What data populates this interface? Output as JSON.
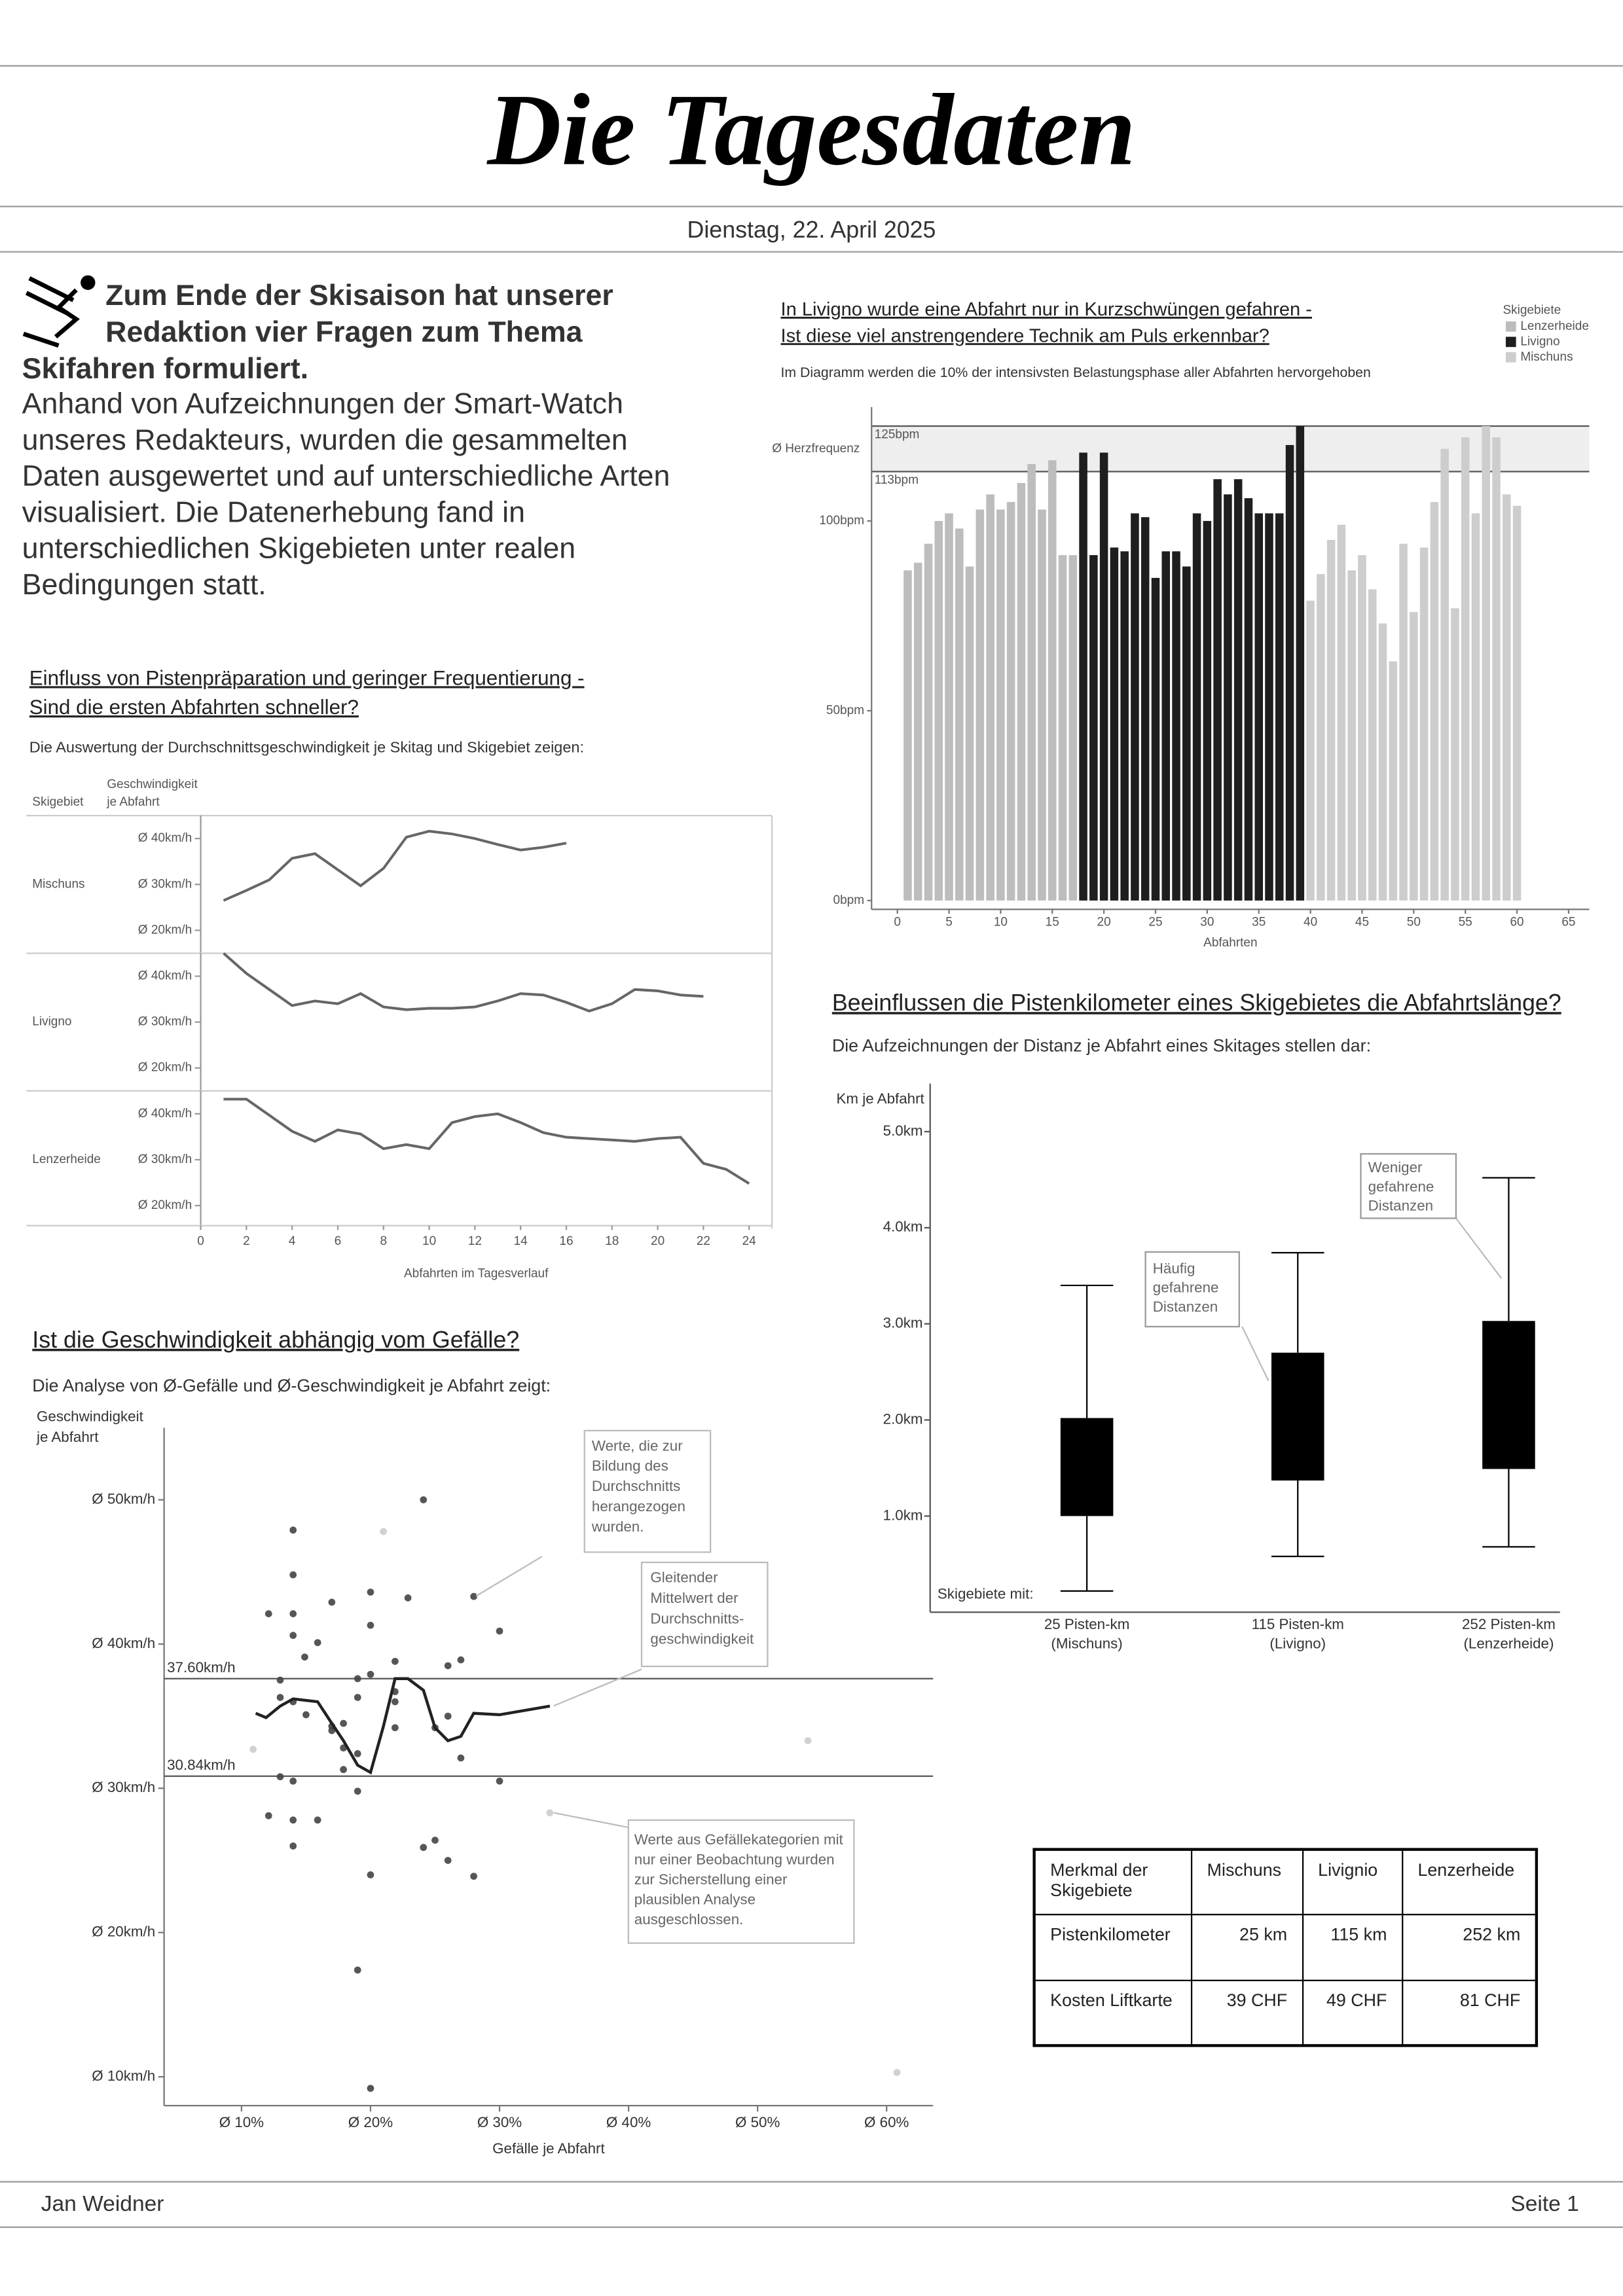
{
  "header": {
    "title": "Die Tagesdaten",
    "date": "Dienstag, 22. April 2025"
  },
  "intro": {
    "lead": [
      "Zum Ende der Skisaison hat unserer",
      "Redaktion vier Fragen zum Thema",
      "Skifahren formuliert."
    ],
    "body": [
      "Anhand von Aufzeichnungen der Smart-Watch",
      "unseres Redakteurs, wurden die gesammelten",
      "Daten ausgewertet und auf unterschiedliche Arten",
      "visualisiert. Die Datenerhebung fand in",
      "unterschiedlichen Skigebieten unter realen",
      "Bedingungen statt."
    ]
  },
  "chart_data": [
    {
      "type": "bar",
      "title": [
        "In Livigno wurde eine Abfahrt nur in Kurzschwüngen gefahren -",
        "Ist diese viel anstrengendere Technik am Puls erkennbar?"
      ],
      "subtitle": "Im Diagramm werden die 10% der intensivsten Belastungsphase aller Abfahrten hervorgehoben",
      "xlabel": "Abfahrten",
      "legend_title": "Skigebiete",
      "series": [
        {
          "name": "Lenzerheide",
          "color": "#bdbdbd",
          "x": [
            1,
            2,
            3,
            4,
            5,
            6,
            7,
            8,
            9,
            10,
            11,
            12,
            13,
            14,
            15,
            16,
            17
          ],
          "values": [
            87,
            89,
            94,
            100,
            102,
            98,
            88,
            103,
            107,
            103,
            105,
            110,
            115,
            103,
            116,
            91,
            91
          ]
        },
        {
          "name": "Livigno",
          "color": "#1e1e1e",
          "x": [
            18,
            19,
            20,
            21,
            22,
            23,
            24,
            25,
            26,
            27,
            28,
            29,
            30,
            31,
            32,
            33,
            34,
            35,
            36,
            37,
            38,
            39
          ],
          "values": [
            118,
            91,
            118,
            93,
            92,
            102,
            101,
            85,
            92,
            92,
            88,
            102,
            100,
            111,
            107,
            111,
            106,
            102,
            102,
            102,
            120,
            125
          ]
        },
        {
          "name": "Mischuns",
          "color": "#cdcdcd",
          "x": [
            40,
            41,
            42,
            43,
            44,
            45,
            46,
            47,
            48,
            49,
            50,
            51,
            52,
            53,
            54,
            55,
            56,
            57,
            58,
            59,
            60
          ],
          "values": [
            79,
            86,
            95,
            99,
            87,
            91,
            82,
            73,
            63,
            94,
            76,
            93,
            105,
            119,
            77,
            122,
            102,
            125,
            122,
            107,
            104
          ]
        }
      ],
      "xlim": [
        -2.5,
        67
      ],
      "xticks": [
        0,
        5,
        10,
        15,
        20,
        25,
        30,
        35,
        40,
        45,
        50,
        55,
        60,
        65
      ],
      "ylim": [
        0,
        130
      ],
      "yticks": [
        {
          "value": 0,
          "label": "0bpm"
        },
        {
          "value": 50,
          "label": "50bpm"
        },
        {
          "value": 100,
          "label": "100bpm"
        }
      ],
      "band": {
        "label": "Ø Herzfrequenz",
        "lines": [
          {
            "value": 113,
            "label": "113bpm"
          },
          {
            "value": 125,
            "label": "125bpm"
          }
        ]
      }
    },
    {
      "type": "line",
      "title": [
        "Einfluss von Pistenpräparation und geringer Frequentierung -",
        "Sind die ersten Abfahrten schneller?"
      ],
      "subtitle": "Die Auswertung der Durchschnittsgeschwindigkeit je Skitag und Skigebiet zeigen:",
      "facet_label": "Skigebiet",
      "ylabel": [
        "Geschwindigkeit",
        "je Abfahrt"
      ],
      "xlabel": "Abfahrten im Tagesverlauf",
      "xlim": [
        0,
        25
      ],
      "xticks": [
        0,
        2,
        4,
        6,
        8,
        10,
        12,
        14,
        16,
        18,
        20,
        22,
        24
      ],
      "ylim": [
        15,
        45
      ],
      "yticks": [
        {
          "value": 20,
          "label": "Ø 20km/h"
        },
        {
          "value": 30,
          "label": "Ø 30km/h"
        },
        {
          "value": 40,
          "label": "Ø 40km/h"
        }
      ],
      "series": [
        {
          "name": "Mischuns",
          "color": "#666666",
          "x": [
            1,
            2,
            3,
            4,
            5,
            6,
            7,
            8,
            9,
            10,
            11,
            12,
            13,
            14,
            15,
            16
          ],
          "values": [
            26.5,
            28.7,
            31,
            35.7,
            36.7,
            33.2,
            29.7,
            33.5,
            40.3,
            41.6,
            41,
            40,
            38.7,
            37.5,
            38.1,
            39
          ]
        },
        {
          "name": "Livigno",
          "color": "#666666",
          "x": [
            1,
            2,
            3,
            4,
            5,
            6,
            7,
            8,
            9,
            10,
            11,
            12,
            13,
            14,
            15,
            16,
            17,
            18,
            19,
            20,
            21,
            22
          ],
          "values": [
            45,
            40.6,
            37.1,
            33.6,
            34.6,
            34,
            36.2,
            33.3,
            32.7,
            33,
            33,
            33.3,
            34.6,
            36.2,
            35.9,
            34.3,
            32.4,
            34,
            37.1,
            36.8,
            35.9,
            35.6
          ]
        },
        {
          "name": "Lenzerheide",
          "color": "#666666",
          "x": [
            1,
            2,
            3,
            4,
            5,
            6,
            7,
            8,
            9,
            10,
            11,
            12,
            13,
            14,
            15,
            16,
            17,
            18,
            19,
            20,
            21,
            22,
            23,
            24
          ],
          "values": [
            43.2,
            43.2,
            39.7,
            36.2,
            34,
            36.5,
            35.6,
            32.4,
            33.3,
            32.4,
            38.1,
            39.4,
            40,
            38.1,
            35.9,
            34.9,
            34.6,
            34.3,
            34,
            34.6,
            34.9,
            29.2,
            27.9,
            24.8
          ]
        }
      ]
    },
    {
      "type": "scatter",
      "title": "Ist die Geschwindigkeit abhängig vom Gefälle?",
      "subtitle": "Die Analyse von Ø-Gefälle und Ø-Geschwindigkeit je Abfahrt zeigt:",
      "ylabel": [
        "Geschwindigkeit",
        "je Abfahrt"
      ],
      "xlabel": "Gefälle je Abfahrt",
      "xlim": [
        4,
        63.6
      ],
      "xticks": [
        {
          "value": 10,
          "label": "Ø 10%"
        },
        {
          "value": 20,
          "label": "Ø 20%"
        },
        {
          "value": 30,
          "label": "Ø 30%"
        },
        {
          "value": 40,
          "label": "Ø 40%"
        },
        {
          "value": 50,
          "label": "Ø 50%"
        },
        {
          "value": 60,
          "label": "Ø 60%"
        }
      ],
      "ylim": [
        8,
        55
      ],
      "yticks": [
        {
          "value": 10,
          "label": "Ø 10km/h"
        },
        {
          "value": 20,
          "label": "Ø 20km/h"
        },
        {
          "value": 30,
          "label": "Ø 30km/h"
        },
        {
          "value": 40,
          "label": "Ø 40km/h"
        },
        {
          "value": 50,
          "label": "Ø 50km/h"
        }
      ],
      "points": {
        "color": "#444444",
        "x": [
          14,
          14,
          12.1,
          14,
          14,
          15.9,
          14.9,
          13,
          17,
          20,
          20,
          22.9,
          24.1,
          28,
          30,
          27,
          26,
          21.9,
          20,
          19,
          19,
          21.9,
          21.9,
          13,
          14,
          15,
          17,
          17.9,
          17,
          17.9,
          19,
          17.9,
          19,
          13,
          14,
          12.1,
          14,
          15.9,
          14,
          20,
          24.1,
          25,
          26,
          28,
          21.9,
          27,
          30,
          19,
          20,
          26,
          25
        ],
        "values": [
          47.9,
          44.8,
          42.1,
          42.1,
          40.6,
          40.1,
          39.1,
          37.5,
          42.9,
          43.6,
          41.3,
          43.2,
          50,
          43.3,
          40.9,
          38.9,
          38.5,
          38.8,
          37.9,
          37.6,
          36.3,
          36.7,
          36,
          36.3,
          36,
          35.1,
          34.3,
          34.5,
          34,
          32.8,
          32.4,
          31.3,
          29.8,
          30.8,
          30.5,
          28.1,
          27.8,
          27.8,
          26,
          24,
          25.9,
          26.4,
          25,
          23.9,
          34.2,
          32.1,
          30.5,
          17.4,
          9.2,
          35,
          34.2
        ]
      },
      "excluded": {
        "color": "#cccccc",
        "x": [
          21,
          10.9,
          33.9,
          53.9,
          60.8
        ],
        "values": [
          47.8,
          32.7,
          28.3,
          33.3,
          10.3
        ]
      },
      "moving_average": {
        "color": "#222222",
        "x": [
          11.1,
          11.9,
          13,
          14,
          15.9,
          17,
          17.9,
          19,
          20,
          21,
          21.9,
          22.9,
          24.1,
          25,
          26,
          27,
          28,
          30,
          33.9
        ],
        "values": [
          35.2,
          34.9,
          35.7,
          36.2,
          36,
          34.5,
          33.3,
          31.6,
          31.1,
          34.3,
          37.6,
          37.6,
          36.8,
          34.2,
          33.3,
          33.6,
          35.2,
          35.1,
          35.7
        ]
      },
      "reference_lines": [
        {
          "value": 37.6,
          "label": "37.60km/h"
        },
        {
          "value": 30.84,
          "label": "30.84km/h"
        }
      ],
      "annotations": [
        [
          "Werte, die zur",
          "Bildung des",
          "Durchschnitts",
          "herangezogen",
          "wurden."
        ],
        [
          "Gleitender",
          "Mittelwert der",
          "Durchschnitts-",
          "geschwindigkeit"
        ],
        [
          "Werte aus Gefällekategorien mit",
          "nur einer Beobachtung wurden",
          "zur Sicherstellung einer",
          "plausiblen Analyse",
          "ausgeschlossen."
        ]
      ]
    },
    {
      "type": "box",
      "title": "Beeinflussen die Pistenkilometer eines Skigebietes die Abfahrtslänge?",
      "subtitle": "Die Aufzeichnungen der Distanz je Abfahrt eines Skitages stellen dar:",
      "ylabel": "Km je Abfahrt",
      "xlabel": "Skigebiete mit:",
      "categories": [
        [
          "25 Pisten-km",
          "(Mischuns)"
        ],
        [
          "115 Pisten-km",
          "(Livigno)"
        ],
        [
          "252 Pisten-km",
          "(Lenzerheide)"
        ]
      ],
      "color": "#000000",
      "ylim": [
        0,
        5.5
      ],
      "yticks": [
        {
          "value": 1,
          "label": "1.0km"
        },
        {
          "value": 2,
          "label": "2.0km"
        },
        {
          "value": 3,
          "label": "3.0km"
        },
        {
          "value": 4,
          "label": "4.0km"
        },
        {
          "value": 5,
          "label": "5.0km"
        }
      ],
      "whisker_low": [
        0.22,
        0.58,
        0.68
      ],
      "q1": [
        1,
        1.37,
        1.49
      ],
      "q3": [
        2.02,
        2.7,
        3.03
      ],
      "whisker_high": [
        3.4,
        3.74,
        4.52
      ],
      "annotations": [
        [
          "Häufig",
          "gefahrene",
          "Distanzen"
        ],
        [
          "Weniger",
          "gefahrene",
          "Distanzen"
        ]
      ]
    }
  ],
  "table": {
    "header": [
      "Merkmal der Skigebiete",
      "Mischuns",
      "Livignio",
      "Lenzerheide"
    ],
    "rows": [
      [
        "Pistenkilometer",
        "25 km",
        "115 km",
        "252 km"
      ],
      [
        "Kosten Liftkarte",
        "39 CHF",
        "49 CHF",
        "81 CHF"
      ]
    ]
  },
  "footer": {
    "author": "Jan Weidner",
    "page": "Seite 1"
  }
}
